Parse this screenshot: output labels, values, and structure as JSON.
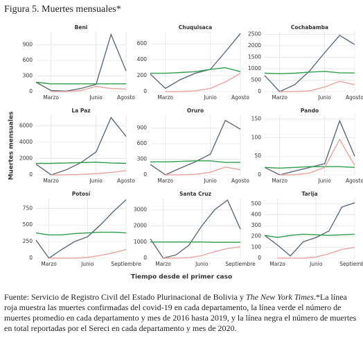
{
  "figure_title": "Figura 5. Muertes mensuales*",
  "y_label": "Muertes mensuales",
  "x_label": "Tiempo desde el primer caso",
  "note_parts": [
    "Fuente: Servicio de Registro Civil del Estado Plurinacional de Bolivia y ",
    "The New York Times",
    ".*La línea roja muestra las muertes confirmadas del covid-19 en cada departamento, la línea verde el número de muertes promedio en cada departamento y mes de 2016 hasta 2019, y la línea negra el número de muertes en total reportadas por el Sereci en cada departamento y mes de 2020."
  ],
  "chart_data": [
    {
      "type": "line",
      "title": "Beni",
      "categories": [
        null,
        "Marzo",
        null,
        null,
        "Junio",
        null,
        "Agosto"
      ],
      "ylim": [
        0,
        1150
      ],
      "yticks": [
        0,
        300,
        600,
        900
      ],
      "grid": true,
      "series": [
        {
          "color": "#5c6b7a",
          "values": [
            180,
            20,
            10,
            60,
            140,
            1100,
            400
          ]
        },
        {
          "color": "#2e9e4a",
          "values": [
            180,
            150,
            150,
            150,
            150,
            150,
            150
          ]
        },
        {
          "color": "#e8a59d",
          "values": [
            null,
            0,
            0,
            20,
            100,
            60,
            50
          ]
        }
      ]
    },
    {
      "type": "line",
      "title": "Chuquisaca",
      "categories": [
        null,
        "Marzo",
        null,
        null,
        "Junio",
        null,
        "Agosto"
      ],
      "ylim": [
        0,
        750
      ],
      "yticks": [
        0,
        200,
        400,
        600
      ],
      "grid": true,
      "series": [
        {
          "color": "#5c6b7a",
          "values": [
            220,
            40,
            150,
            230,
            280,
            500,
            730
          ]
        },
        {
          "color": "#2e9e4a",
          "values": [
            230,
            230,
            240,
            250,
            280,
            300,
            250
          ]
        },
        {
          "color": "#e8a59d",
          "values": [
            null,
            0,
            0,
            10,
            40,
            120,
            230
          ]
        }
      ]
    },
    {
      "type": "line",
      "title": "Cochabamba",
      "categories": [
        null,
        "Marzo",
        null,
        null,
        "Junio",
        null,
        "Agosto"
      ],
      "ylim": [
        0,
        2600
      ],
      "yticks": [
        0,
        500,
        1000,
        1500,
        2000,
        2500
      ],
      "grid": true,
      "series": [
        {
          "color": "#5c6b7a",
          "values": [
            700,
            0,
            300,
            900,
            1700,
            2450,
            2050
          ]
        },
        {
          "color": "#2e9e4a",
          "values": [
            800,
            780,
            800,
            850,
            880,
            820,
            810
          ]
        },
        {
          "color": "#e8a59d",
          "values": [
            null,
            0,
            0,
            30,
            200,
            450,
            300
          ]
        }
      ]
    },
    {
      "type": "line",
      "title": "La Paz",
      "categories": [
        null,
        "Marzo",
        null,
        null,
        "Junio",
        null,
        "Agosto"
      ],
      "ylim": [
        0,
        7300
      ],
      "yticks": [
        0,
        2000,
        4000,
        6000
      ],
      "grid": true,
      "series": [
        {
          "color": "#5c6b7a",
          "values": [
            1300,
            0,
            600,
            1500,
            2800,
            7000,
            4700
          ]
        },
        {
          "color": "#2e9e4a",
          "values": [
            1400,
            1400,
            1450,
            1500,
            1550,
            1450,
            1400
          ]
        },
        {
          "color": "#e8a59d",
          "values": [
            null,
            0,
            0,
            50,
            150,
            300,
            500
          ]
        }
      ]
    },
    {
      "type": "line",
      "title": "Oruro",
      "categories": [
        null,
        "Marzo",
        null,
        null,
        "Junio",
        null,
        "Agosto"
      ],
      "ylim": [
        0,
        1150
      ],
      "yticks": [
        0,
        300,
        600,
        900
      ],
      "grid": true,
      "series": [
        {
          "color": "#5c6b7a",
          "values": [
            200,
            0,
            130,
            250,
            400,
            1050,
            880
          ]
        },
        {
          "color": "#2e9e4a",
          "values": [
            250,
            250,
            260,
            270,
            270,
            240,
            240
          ]
        },
        {
          "color": "#e8a59d",
          "values": [
            null,
            0,
            0,
            10,
            50,
            150,
            100
          ]
        }
      ]
    },
    {
      "type": "line",
      "title": "Pando",
      "categories": [
        null,
        "Marzo",
        null,
        null,
        "Junio",
        null,
        "Agosto"
      ],
      "ylim": [
        0,
        160
      ],
      "yticks": [
        0,
        50,
        100,
        150
      ],
      "grid": true,
      "series": [
        {
          "color": "#5c6b7a",
          "values": [
            20,
            0,
            10,
            20,
            30,
            145,
            50
          ]
        },
        {
          "color": "#2e9e4a",
          "values": [
            20,
            18,
            20,
            22,
            22,
            22,
            20
          ]
        },
        {
          "color": "#e8a59d",
          "values": [
            null,
            0,
            0,
            5,
            20,
            95,
            25
          ]
        }
      ]
    },
    {
      "type": "line",
      "title": "Potosí",
      "categories": [
        null,
        "Marzo",
        null,
        null,
        "Junio",
        null,
        null,
        "Septiembre"
      ],
      "ylim": [
        0,
        900
      ],
      "yticks": [
        0,
        250,
        500,
        750
      ],
      "grid": true,
      "series": [
        {
          "color": "#5c6b7a",
          "values": [
            270,
            0,
            130,
            250,
            320,
            500,
            700,
            880
          ]
        },
        {
          "color": "#2e9e4a",
          "values": [
            380,
            350,
            350,
            370,
            380,
            390,
            390,
            380
          ]
        },
        {
          "color": "#e8a59d",
          "values": [
            null,
            0,
            0,
            0,
            10,
            40,
            80,
            130
          ]
        }
      ]
    },
    {
      "type": "line",
      "title": "Santa Cruz",
      "categories": [
        null,
        "Marzo",
        null,
        null,
        "Junio",
        null,
        null,
        "Septiembre"
      ],
      "ylim": [
        0,
        3700
      ],
      "yticks": [
        0,
        1000,
        2000,
        3000
      ],
      "grid": true,
      "series": [
        {
          "color": "#5c6b7a",
          "values": [
            1200,
            0,
            200,
            800,
            2000,
            3000,
            3600,
            1800
          ]
        },
        {
          "color": "#2e9e4a",
          "values": [
            1000,
            1000,
            1000,
            1000,
            1000,
            980,
            980,
            980
          ]
        },
        {
          "color": "#e8a59d",
          "values": [
            null,
            0,
            0,
            30,
            150,
            400,
            600,
            700
          ]
        }
      ]
    },
    {
      "type": "line",
      "title": "Tarija",
      "categories": [
        null,
        "Marzo",
        null,
        null,
        "Junio",
        null,
        null,
        "Septiembre"
      ],
      "ylim": [
        0,
        550
      ],
      "yticks": [
        0,
        100,
        200,
        300,
        400,
        500
      ],
      "grid": true,
      "series": [
        {
          "color": "#5c6b7a",
          "values": [
            210,
            120,
            20,
            150,
            190,
            250,
            470,
            510
          ]
        },
        {
          "color": "#2e9e4a",
          "values": [
            210,
            190,
            210,
            220,
            215,
            210,
            215,
            220
          ]
        },
        {
          "color": "#e8a59d",
          "values": [
            null,
            0,
            0,
            0,
            10,
            40,
            80,
            100
          ]
        }
      ]
    }
  ]
}
